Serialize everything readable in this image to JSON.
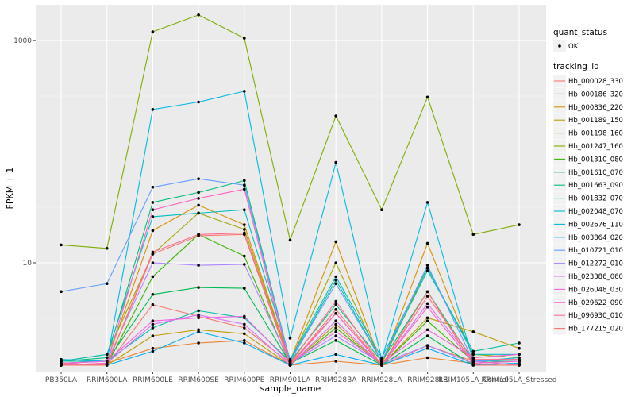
{
  "chart_data": {
    "type": "line",
    "xlabel": "sample_name",
    "ylabel": "FPKM + 1",
    "yscale": "log10",
    "ylim": [
      1.05,
      2100
    ],
    "yticks": [
      10,
      1000
    ],
    "ytick_labels": [
      "10",
      "1000"
    ],
    "grid": true,
    "legend_position": "right",
    "categories": [
      "PB350LA",
      "RRIM600LA",
      "RRIM600LE",
      "RRIM600SE",
      "RRIM600PE",
      "RRIM901LA",
      "RRIM928BA",
      "RRIM928LA",
      "RRIM928LE",
      "RRIM105LA_Control",
      "RRIM105LA_Stressed"
    ],
    "category_labels": [
      "PB350LA",
      "RRIM600LA",
      "RRIM600LE",
      "RRIM600SE",
      "RRIM600PE",
      "RRIM901LA",
      "RRIM928BA",
      "RRIM928LA",
      "RRIM928LE",
      "RRIM105LA_Control",
      "RRIM105LA_Stressed"
    ],
    "quant_status": {
      "title": "quant_status",
      "items": [
        "OK"
      ]
    },
    "tracking_id": {
      "title": "tracking_id",
      "series": [
        {
          "name": "Hb_000028_330",
          "color": "#F8766D",
          "values": [
            1.25,
            1.2,
            4.2,
            3.3,
            2.6,
            1.25,
            3.5,
            1.2,
            1.8,
            1.3,
            1.3
          ]
        },
        {
          "name": "Hb_000186_320",
          "color": "#EA8331",
          "values": [
            1.2,
            1.25,
            1.7,
            1.9,
            2.0,
            1.2,
            1.3,
            1.2,
            1.4,
            1.25,
            1.3
          ]
        },
        {
          "name": "Hb_000836_220",
          "color": "#D89000",
          "values": [
            1.3,
            1.3,
            19.5,
            33,
            22,
            1.3,
            15.5,
            1.2,
            15,
            1.4,
            1.5
          ]
        },
        {
          "name": "Hb_001189_150",
          "color": "#C09B00",
          "values": [
            1.2,
            1.2,
            2.2,
            2.5,
            2.3,
            1.2,
            2.8,
            1.2,
            3.2,
            2.4,
            1.7
          ]
        },
        {
          "name": "Hb_001198_160",
          "color": "#A3A500",
          "values": [
            1.3,
            1.5,
            12,
            28,
            20,
            1.3,
            10,
            1.25,
            9,
            1.5,
            1.4
          ]
        },
        {
          "name": "Hb_001247_160",
          "color": "#7CAE00",
          "values": [
            14.5,
            13.5,
            1200,
            1700,
            1050,
            16,
            210,
            30,
            310,
            18,
            22
          ]
        },
        {
          "name": "Hb_001310_080",
          "color": "#39B600",
          "values": [
            1.2,
            1.2,
            7.5,
            18,
            11.5,
            1.2,
            2.6,
            1.2,
            3.0,
            1.3,
            1.2
          ]
        },
        {
          "name": "Hb_001610_070",
          "color": "#00BB4E",
          "values": [
            1.25,
            1.3,
            5.2,
            6.0,
            5.9,
            1.25,
            2.0,
            1.2,
            2.2,
            1.2,
            1.25
          ]
        },
        {
          "name": "Hb_001663_090",
          "color": "#00BF7D",
          "values": [
            1.3,
            1.4,
            35,
            43,
            55,
            1.3,
            4.2,
            1.3,
            5.5,
            1.3,
            1.3
          ]
        },
        {
          "name": "Hb_001832_070",
          "color": "#00C1A3",
          "values": [
            1.3,
            1.3,
            2.6,
            3.7,
            3.2,
            1.3,
            7.0,
            1.3,
            8.5,
            1.6,
            1.9
          ]
        },
        {
          "name": "Hb_002048_070",
          "color": "#00BFC4",
          "values": [
            1.3,
            1.5,
            26,
            28,
            30,
            1.35,
            7.5,
            1.4,
            9.0,
            1.5,
            1.5
          ]
        },
        {
          "name": "Hb_002676_110",
          "color": "#00B9E3",
          "values": [
            1.35,
            1.3,
            240,
            280,
            350,
            2.1,
            80,
            1.35,
            35,
            1.3,
            1.4
          ]
        },
        {
          "name": "Hb_003864_020",
          "color": "#00ADFA",
          "values": [
            1.2,
            1.2,
            1.6,
            2.4,
            1.9,
            1.2,
            1.5,
            1.2,
            1.7,
            1.2,
            1.25
          ]
        },
        {
          "name": "Hb_010721_010",
          "color": "#619CFF",
          "values": [
            5.5,
            6.5,
            48,
            57,
            50,
            1.3,
            6.5,
            1.3,
            9.5,
            1.3,
            1.35
          ]
        },
        {
          "name": "Hb_012272_010",
          "color": "#AE87FF",
          "values": [
            1.25,
            1.3,
            10,
            9.5,
            9.7,
            1.25,
            2.2,
            1.25,
            1.8,
            1.25,
            1.3
          ]
        },
        {
          "name": "Hb_023386_060",
          "color": "#DB72FB",
          "values": [
            1.2,
            1.25,
            2.8,
            3.4,
            2.8,
            1.2,
            3.0,
            1.2,
            4.3,
            1.3,
            1.2
          ]
        },
        {
          "name": "Hb_026048_030",
          "color": "#F564E3",
          "values": [
            1.25,
            1.3,
            3.0,
            3.2,
            3.3,
            1.25,
            2.4,
            1.25,
            2.5,
            1.4,
            1.5
          ]
        },
        {
          "name": "Hb_029622_090",
          "color": "#FF61C3",
          "values": [
            1.2,
            1.25,
            30,
            38,
            46,
            1.2,
            3.5,
            1.2,
            4.0,
            1.25,
            1.3
          ]
        },
        {
          "name": "Hb_096930_010",
          "color": "#FF6C91",
          "values": [
            1.25,
            1.2,
            12.5,
            18,
            18.5,
            1.25,
            4.5,
            1.2,
            5.0,
            1.35,
            1.35
          ]
        },
        {
          "name": "Hb_177215_020",
          "color": "#F8766D",
          "values": [
            1.2,
            1.2,
            12,
            17.5,
            18,
            1.2,
            3.8,
            1.2,
            5.5,
            1.2,
            1.2
          ]
        }
      ]
    }
  }
}
